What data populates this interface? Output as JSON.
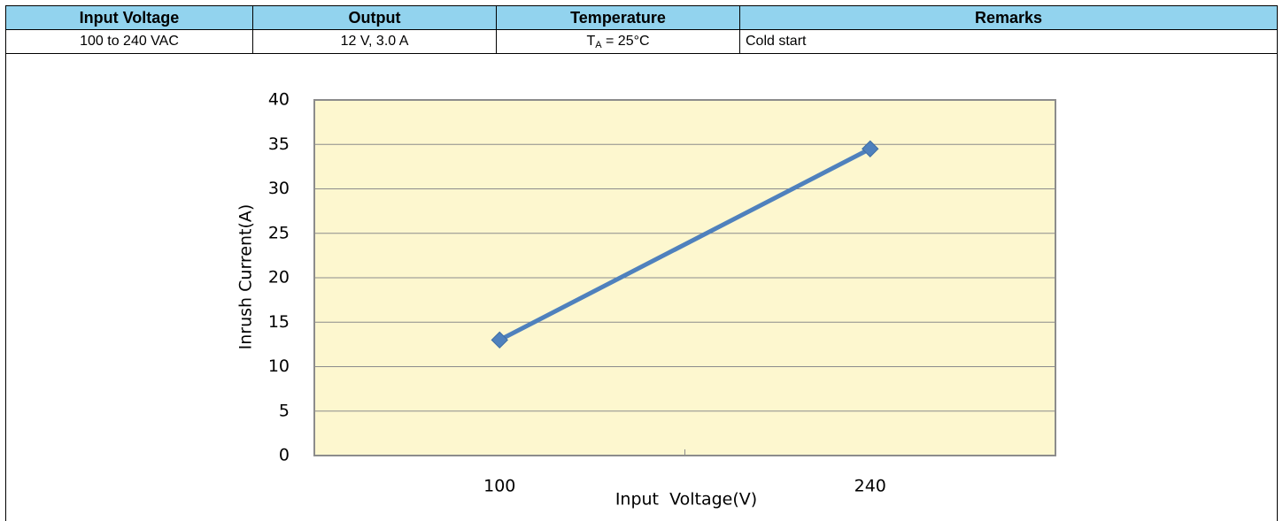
{
  "table": {
    "header": [
      "Input Voltage",
      "Output",
      "Temperature",
      "Remarks"
    ],
    "rows": [
      [
        "100 to 240 VAC",
        "12 V, 3.0 A",
        {
          "main": "T",
          "sub": "A",
          "rest": " = 25°C"
        },
        "Cold start"
      ]
    ]
  },
  "chart_data": {
    "type": "line",
    "x_label": "Input  Voltage(V)",
    "y_label": "Inrush Current(A)",
    "categories": [
      "100",
      "240"
    ],
    "values": [
      13,
      34.5
    ],
    "color": "#4f81bd",
    "ylim": [
      0,
      40
    ],
    "yticks": [
      0,
      5,
      10,
      15,
      20,
      25,
      30,
      35,
      40
    ],
    "grid": true,
    "marker": "diamond",
    "plot_background": "#fdf7cf"
  }
}
